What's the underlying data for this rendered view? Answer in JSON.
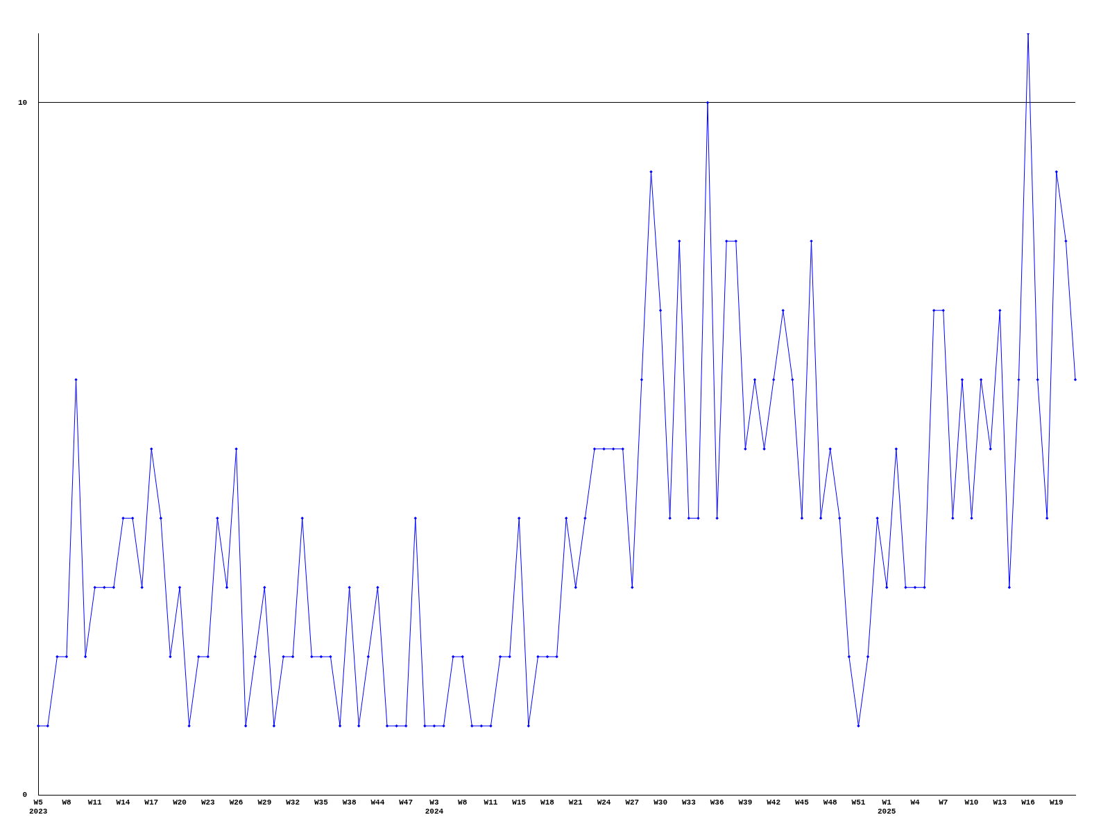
{
  "chart_data": {
    "type": "line",
    "categories": [
      "W5\n2023",
      null,
      null,
      "W8",
      null,
      null,
      "W11",
      null,
      null,
      "W14",
      null,
      null,
      "W17",
      null,
      null,
      "W20",
      null,
      null,
      "W23",
      null,
      null,
      "W26",
      null,
      null,
      "W29",
      null,
      null,
      "W32",
      null,
      null,
      "W35",
      null,
      null,
      "W38",
      null,
      null,
      "W44",
      null,
      null,
      "W47",
      null,
      null,
      "W3\n2024",
      null,
      null,
      "W8",
      null,
      null,
      "W11",
      null,
      null,
      "W15",
      null,
      null,
      "W18",
      null,
      null,
      "W21",
      null,
      null,
      "W24",
      null,
      null,
      "W27",
      null,
      null,
      "W30",
      null,
      null,
      "W33",
      null,
      null,
      "W36",
      null,
      null,
      "W39",
      null,
      null,
      "W42",
      null,
      null,
      "W45",
      null,
      null,
      "W48",
      null,
      null,
      "W51",
      null,
      null,
      "W1\n2025",
      null,
      null,
      "W4",
      null,
      null,
      "W7",
      null,
      null,
      "W10",
      null,
      null,
      "W13",
      null,
      null,
      "W16",
      null,
      null,
      "W19",
      null,
      null
    ],
    "series": [
      {
        "color": "#0000ff",
        "values": [
          1,
          1,
          2,
          2,
          6,
          2,
          3,
          3,
          3,
          4,
          4,
          3,
          5,
          4,
          2,
          3,
          1,
          2,
          2,
          4,
          3,
          5,
          1,
          2,
          3,
          1,
          2,
          2,
          4,
          2,
          2,
          2,
          1,
          3,
          1,
          2,
          3,
          1,
          1,
          1,
          4,
          1,
          1,
          1,
          2,
          2,
          1,
          1,
          1,
          2,
          2,
          4,
          1,
          2,
          2,
          2,
          4,
          3,
          4,
          5,
          5,
          5,
          5,
          3,
          6,
          9,
          7,
          4,
          8,
          4,
          4,
          10,
          4,
          8,
          8,
          5,
          6,
          5,
          6,
          7,
          6,
          4,
          8,
          4,
          5,
          4,
          2,
          1,
          2,
          4,
          3,
          5,
          3,
          3,
          3,
          7,
          7,
          4,
          6,
          4,
          6,
          5,
          7,
          3,
          6,
          11,
          6,
          4,
          9,
          8,
          6
        ]
      }
    ],
    "ylim": [
      0,
      11
    ],
    "yticks": [
      0,
      10
    ],
    "grid": "y",
    "legend": false,
    "marker": "diamond",
    "line_style": "solid"
  }
}
